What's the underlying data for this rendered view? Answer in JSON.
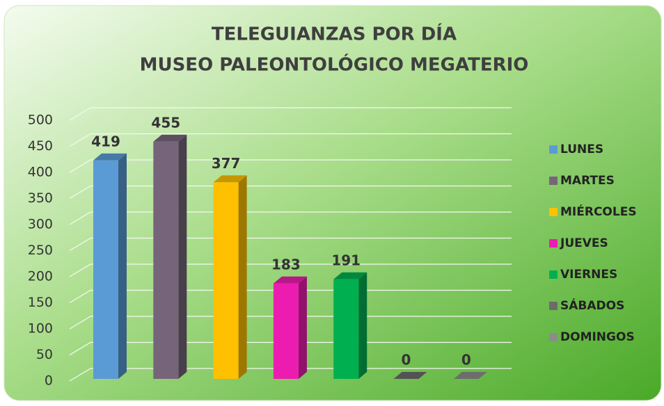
{
  "chart_data": {
    "type": "bar3d",
    "title": [
      "TELEGUIANZAS POR DÍA",
      "MUSEO PALEONTOLÓGICO MEGATERIO"
    ],
    "categories": [
      "LUNES",
      "MARTES",
      "MIÉRCOLES",
      "JUEVES",
      "VIERNES",
      "SÁBADOS",
      "DOMINGOS"
    ],
    "values": [
      419,
      455,
      377,
      183,
      191,
      0,
      0
    ],
    "colors": [
      "#5b9bd5",
      "#76657a",
      "#ffc000",
      "#ec1cb0",
      "#00b050",
      "#6b6b6b",
      "#8c8c8c"
    ],
    "ylim": [
      0,
      500
    ],
    "yticks": [
      0,
      50,
      100,
      150,
      200,
      250,
      300,
      350,
      400,
      450,
      500
    ],
    "grid": true,
    "legend": "right"
  }
}
